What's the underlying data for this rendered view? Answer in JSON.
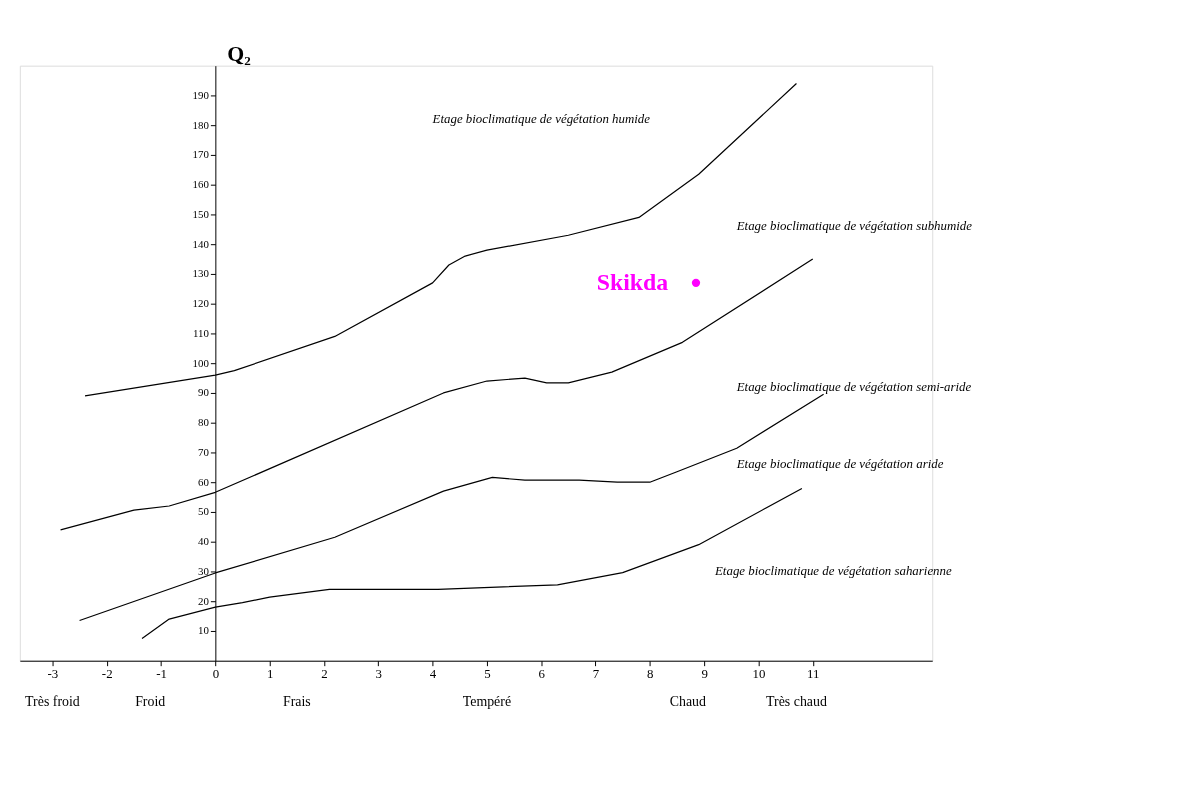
{
  "chart_data": {
    "type": "line",
    "ylabel": "Q₂",
    "xlim": [
      -3.6,
      13.2
    ],
    "xticks": [
      -3,
      -2,
      -1,
      0,
      1,
      2,
      3,
      4,
      5,
      6,
      7,
      8,
      9,
      10,
      11
    ],
    "ylim": [
      0,
      200
    ],
    "yticks": [
      10,
      20,
      30,
      40,
      50,
      60,
      70,
      80,
      90,
      100,
      110,
      120,
      130,
      140,
      150,
      160,
      170,
      180,
      190
    ],
    "grid": false,
    "legend": false,
    "marker": "none",
    "line_style": "solid",
    "series": [
      {
        "color": "#000000",
        "x": [
          -2.4,
          0,
          0.35,
          2.2,
          4,
          4.3,
          4.6,
          5,
          6.5,
          7.8,
          8.9,
          10.7
        ],
        "values": [
          89,
          96,
          97.5,
          109,
          127,
          133,
          136,
          138,
          143,
          149,
          163.5,
          194
        ]
      },
      {
        "color": "#000000",
        "x": [
          -2.85,
          -1.5,
          -0.85,
          0,
          4.2,
          5,
          5.7,
          6.1,
          6.5,
          7.3,
          8.6,
          11
        ],
        "values": [
          44,
          50.6,
          52,
          56.6,
          90,
          94,
          95,
          93.4,
          93.4,
          97,
          107,
          135
        ]
      },
      {
        "color": "#000000",
        "x": [
          -2.5,
          0,
          2.2,
          4.2,
          5.1,
          5.7,
          6.7,
          7.4,
          8,
          8.5,
          9.6,
          11.2
        ],
        "values": [
          13.5,
          29.5,
          41.5,
          57,
          61.6,
          60.7,
          60.7,
          60,
          60,
          63.5,
          71.4,
          89.6
        ]
      },
      {
        "color": "#000000",
        "x": [
          -1.35,
          -0.85,
          0,
          0.5,
          1,
          2.1,
          4.1,
          6.3,
          7.5,
          8.9,
          10.8
        ],
        "values": [
          7.5,
          14,
          18,
          19.5,
          21.4,
          24,
          24,
          25.5,
          29.6,
          39,
          57.9
        ]
      },
      {
        "type": "scatter",
        "name": "Skikda",
        "color": "#ff00ff",
        "marker": "circle",
        "x": [
          8.85
        ],
        "values": [
          127
        ]
      }
    ],
    "annotations": [
      "Etage bioclimatique de végétation humide",
      "Etage bioclimatique de végétation subhumide",
      "Etage bioclimatique de végétation semi-aride",
      "Etage bioclimatique de végétation aride",
      "Etage bioclimatique de végétation saharienne",
      "Très froid",
      "Froid",
      "Frais",
      "Tempéré",
      "Chaud",
      "Très chaud"
    ]
  }
}
